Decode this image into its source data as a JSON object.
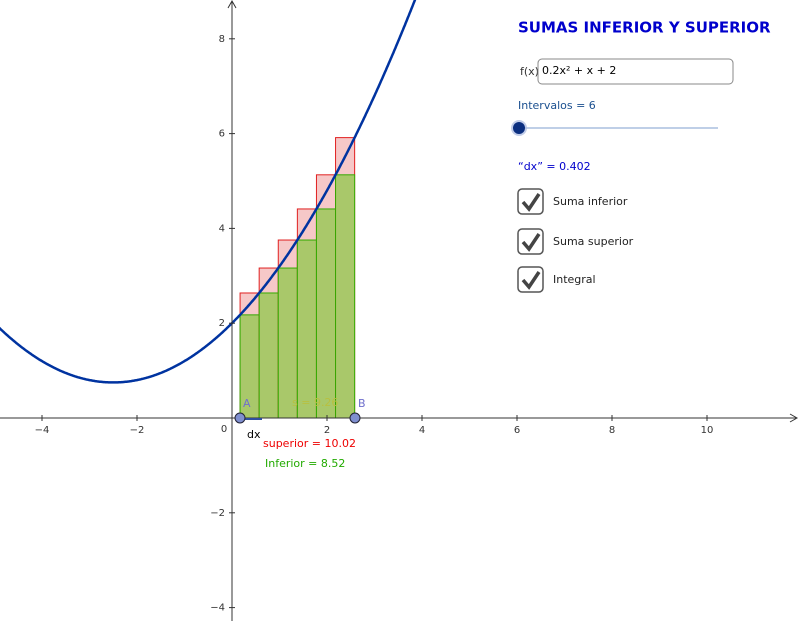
{
  "panel": {
    "title": "SUMAS INFERIOR Y SUPERIOR",
    "function": {
      "label": "f(x)",
      "expression": "0.2x² + x + 2"
    },
    "slider": {
      "label": "Intervalos = 6"
    },
    "dx": "“dx” = 0.402",
    "checkboxes": [
      "Suma inferior",
      "Suma superior",
      "Integral"
    ]
  },
  "graph": {
    "xticks": [
      {
        "value": -4,
        "label": "−4"
      },
      {
        "value": -2,
        "label": "−2"
      },
      2,
      4,
      6,
      8,
      10
    ],
    "yticks": [
      {
        "value": -4,
        "label": "−4"
      },
      {
        "value": -2,
        "label": "−2"
      },
      2,
      4,
      6,
      8
    ],
    "origin": "0",
    "points": [
      "A",
      "B"
    ],
    "dx_label": "dx",
    "integral": "s = 9.26",
    "superior": "superior = 10.02",
    "inferior": "Inferior = 8.52"
  }
}
